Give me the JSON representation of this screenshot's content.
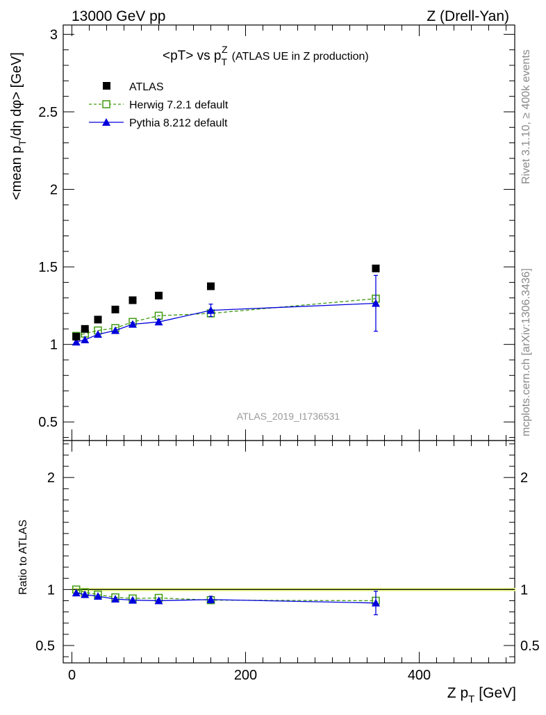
{
  "header": {
    "left": "13000 GeV pp",
    "right": "Z (Drell-Yan)"
  },
  "side": {
    "rivet": "Rivet 3.1.10, ≥ 400k events",
    "mcplots": "mcplots.cern.ch [arXiv:1306.3436]"
  },
  "chart_data": [
    {
      "type": "scatter",
      "panel": "main",
      "title": "<pT> vs p",
      "title_sup": "Z",
      "title_sub": "T",
      "title_suffix": "(ATLAS UE in Z production)",
      "ylabel": "<mean p",
      "ylabel_sub": "T",
      "ylabel_suffix": "/dη dφ> [GeV]",
      "analysis_label": "ATLAS_2019_I1736531",
      "xlim": [
        -10,
        510
      ],
      "ylim": [
        0.38,
        3.06
      ],
      "y_ticks": [
        0.5,
        1,
        1.5,
        2,
        2.5,
        3
      ],
      "y_tick_labels": [
        "0.5",
        "1",
        "1.5",
        "2",
        "2.5",
        "3"
      ],
      "legend_position": "top-left",
      "series": [
        {
          "name": "ATLAS",
          "style": "data",
          "color": "#000000",
          "x": [
            5,
            15,
            30,
            50,
            70,
            100,
            160,
            350
          ],
          "y": [
            1.05,
            1.1,
            1.16,
            1.225,
            1.285,
            1.315,
            1.375,
            1.49
          ]
        },
        {
          "name": "Herwig 7.2.1 default",
          "style": "dashed-open-square",
          "color": "#3e9a0f",
          "x": [
            5,
            15,
            30,
            50,
            70,
            100,
            160,
            350
          ],
          "y": [
            1.055,
            1.07,
            1.09,
            1.105,
            1.145,
            1.185,
            1.2,
            1.295
          ]
        },
        {
          "name": "Pythia 8.212 default",
          "style": "solid-triangle",
          "color": "#0000dd",
          "x": [
            5,
            15,
            30,
            50,
            70,
            100,
            160,
            350
          ],
          "y": [
            1.015,
            1.03,
            1.065,
            1.09,
            1.13,
            1.145,
            1.22,
            1.265
          ],
          "err": [
            0,
            0,
            0,
            0,
            0.01,
            0.015,
            0.04,
            0.18
          ]
        }
      ]
    },
    {
      "type": "scatter",
      "panel": "ratio",
      "ylabel": "Ratio to ATLAS",
      "xlabel": "Z p",
      "xlabel_sub": "T",
      "xlabel_suffix": "[GeV]",
      "xlim": [
        -10,
        510
      ],
      "ylim": [
        0.345,
        2.33
      ],
      "x_ticks": [
        0,
        200,
        400
      ],
      "x_tick_labels": [
        "0",
        "200",
        "400"
      ],
      "y_ticks": [
        0.5,
        1,
        2
      ],
      "y_tick_labels": [
        "0.5",
        "1",
        "2"
      ],
      "band": {
        "lo": 0.985,
        "hi": 1.015
      },
      "series": [
        {
          "name": "Herwig 7.2.1 default",
          "color": "#3e9a0f",
          "x": [
            5,
            15,
            30,
            50,
            70,
            100,
            160,
            350
          ],
          "y": [
            1.0,
            0.975,
            0.955,
            0.93,
            0.92,
            0.925,
            0.905,
            0.9
          ]
        },
        {
          "name": "Pythia 8.212 default",
          "color": "#0000dd",
          "x": [
            5,
            15,
            30,
            50,
            70,
            100,
            160,
            350
          ],
          "y": [
            0.97,
            0.955,
            0.94,
            0.915,
            0.905,
            0.9,
            0.91,
            0.88
          ],
          "err": [
            0,
            0,
            0,
            0,
            0,
            0.01,
            0.03,
            0.105
          ]
        }
      ]
    }
  ]
}
